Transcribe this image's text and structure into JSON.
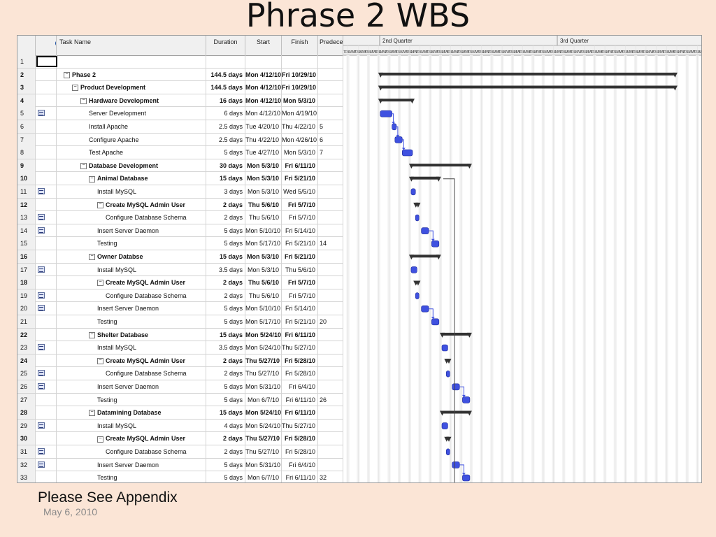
{
  "slide": {
    "title": "Phrase 2 WBS",
    "note": "Please See Appendix",
    "date": "May 6, 2010"
  },
  "columns": {
    "info_icon": "i",
    "task_name": "Task Name",
    "duration": "Duration",
    "start": "Start",
    "finish": "Finish",
    "predecessors": "Predeces"
  },
  "timescale": {
    "quarter1": "2nd Quarter",
    "quarter2": "3rd Quarter",
    "weekday_letters": "SMTWTFS"
  },
  "colors": {
    "task_bar": "#3f51e0",
    "summary_bar": "#333333",
    "slide_bg": "#fbe5d6"
  },
  "tasks": [
    {
      "id": "1",
      "name": "",
      "duration": "",
      "start": "",
      "finish": "",
      "pred": "",
      "level": 0,
      "summary": false,
      "note": false
    },
    {
      "id": "2",
      "name": "Phase 2",
      "duration": "144.5 days",
      "start": "Mon 4/12/10",
      "finish": "Fri 10/29/10",
      "pred": "",
      "level": 0,
      "summary": true,
      "note": false
    },
    {
      "id": "3",
      "name": "Product Development",
      "duration": "144.5 days",
      "start": "Mon 4/12/10",
      "finish": "Fri 10/29/10",
      "pred": "",
      "level": 1,
      "summary": true,
      "note": false
    },
    {
      "id": "4",
      "name": "Hardware Development",
      "duration": "16 days",
      "start": "Mon 4/12/10",
      "finish": "Mon 5/3/10",
      "pred": "",
      "level": 2,
      "summary": true,
      "note": false
    },
    {
      "id": "5",
      "name": "Server Development",
      "duration": "6 days",
      "start": "Mon 4/12/10",
      "finish": "Mon 4/19/10",
      "pred": "",
      "level": 3,
      "summary": false,
      "note": true
    },
    {
      "id": "6",
      "name": "Install Apache",
      "duration": "2.5 days",
      "start": "Tue 4/20/10",
      "finish": "Thu 4/22/10",
      "pred": "5",
      "level": 3,
      "summary": false,
      "note": false
    },
    {
      "id": "7",
      "name": "Configure Apache",
      "duration": "2.5 days",
      "start": "Thu 4/22/10",
      "finish": "Mon 4/26/10",
      "pred": "6",
      "level": 3,
      "summary": false,
      "note": false
    },
    {
      "id": "8",
      "name": "Test Apache",
      "duration": "5 days",
      "start": "Tue 4/27/10",
      "finish": "Mon 5/3/10",
      "pred": "7",
      "level": 3,
      "summary": false,
      "note": false
    },
    {
      "id": "9",
      "name": "Database Development",
      "duration": "30 days",
      "start": "Mon 5/3/10",
      "finish": "Fri 6/11/10",
      "pred": "",
      "level": 2,
      "summary": true,
      "note": false
    },
    {
      "id": "10",
      "name": "Animal Database",
      "duration": "15 days",
      "start": "Mon 5/3/10",
      "finish": "Fri 5/21/10",
      "pred": "",
      "level": 3,
      "summary": true,
      "note": false
    },
    {
      "id": "11",
      "name": "Install MySQL",
      "duration": "3 days",
      "start": "Mon 5/3/10",
      "finish": "Wed 5/5/10",
      "pred": "",
      "level": 4,
      "summary": false,
      "note": true
    },
    {
      "id": "12",
      "name": "Create MySQL Admin User",
      "duration": "2 days",
      "start": "Thu 5/6/10",
      "finish": "Fri 5/7/10",
      "pred": "",
      "level": 4,
      "summary": true,
      "note": false
    },
    {
      "id": "13",
      "name": "Configure Database Schema",
      "duration": "2 days",
      "start": "Thu 5/6/10",
      "finish": "Fri 5/7/10",
      "pred": "",
      "level": 5,
      "summary": false,
      "note": true
    },
    {
      "id": "14",
      "name": "Insert Server Daemon",
      "duration": "5 days",
      "start": "Mon 5/10/10",
      "finish": "Fri 5/14/10",
      "pred": "",
      "level": 4,
      "summary": false,
      "note": true
    },
    {
      "id": "15",
      "name": "Testing",
      "duration": "5 days",
      "start": "Mon 5/17/10",
      "finish": "Fri 5/21/10",
      "pred": "14",
      "level": 4,
      "summary": false,
      "note": false
    },
    {
      "id": "16",
      "name": "Owner Databse",
      "duration": "15 days",
      "start": "Mon 5/3/10",
      "finish": "Fri 5/21/10",
      "pred": "",
      "level": 3,
      "summary": true,
      "note": false
    },
    {
      "id": "17",
      "name": "Install MySQL",
      "duration": "3.5 days",
      "start": "Mon 5/3/10",
      "finish": "Thu 5/6/10",
      "pred": "",
      "level": 4,
      "summary": false,
      "note": true
    },
    {
      "id": "18",
      "name": "Create MySQL Admin User",
      "duration": "2 days",
      "start": "Thu 5/6/10",
      "finish": "Fri 5/7/10",
      "pred": "",
      "level": 4,
      "summary": true,
      "note": false
    },
    {
      "id": "19",
      "name": "Configure Database Schema",
      "duration": "2 days",
      "start": "Thu 5/6/10",
      "finish": "Fri 5/7/10",
      "pred": "",
      "level": 5,
      "summary": false,
      "note": true
    },
    {
      "id": "20",
      "name": "Insert Server Daemon",
      "duration": "5 days",
      "start": "Mon 5/10/10",
      "finish": "Fri 5/14/10",
      "pred": "",
      "level": 4,
      "summary": false,
      "note": true
    },
    {
      "id": "21",
      "name": "Testing",
      "duration": "5 days",
      "start": "Mon 5/17/10",
      "finish": "Fri 5/21/10",
      "pred": "20",
      "level": 4,
      "summary": false,
      "note": false
    },
    {
      "id": "22",
      "name": "Shelter Database",
      "duration": "15 days",
      "start": "Mon 5/24/10",
      "finish": "Fri 6/11/10",
      "pred": "",
      "level": 3,
      "summary": true,
      "note": false
    },
    {
      "id": "23",
      "name": "Install MySQL",
      "duration": "3.5 days",
      "start": "Mon 5/24/10",
      "finish": "Thu 5/27/10",
      "pred": "",
      "level": 4,
      "summary": false,
      "note": true
    },
    {
      "id": "24",
      "name": "Create MySQL Admin User",
      "duration": "2 days",
      "start": "Thu 5/27/10",
      "finish": "Fri 5/28/10",
      "pred": "",
      "level": 4,
      "summary": true,
      "note": false
    },
    {
      "id": "25",
      "name": "Configure Database Schema",
      "duration": "2 days",
      "start": "Thu 5/27/10",
      "finish": "Fri 5/28/10",
      "pred": "",
      "level": 5,
      "summary": false,
      "note": true
    },
    {
      "id": "26",
      "name": "Insert Server Daemon",
      "duration": "5 days",
      "start": "Mon 5/31/10",
      "finish": "Fri 6/4/10",
      "pred": "",
      "level": 4,
      "summary": false,
      "note": true
    },
    {
      "id": "27",
      "name": "Testing",
      "duration": "5 days",
      "start": "Mon 6/7/10",
      "finish": "Fri 6/11/10",
      "pred": "26",
      "level": 4,
      "summary": false,
      "note": false
    },
    {
      "id": "28",
      "name": "Datamining Database",
      "duration": "15 days",
      "start": "Mon 5/24/10",
      "finish": "Fri 6/11/10",
      "pred": "",
      "level": 3,
      "summary": true,
      "note": false
    },
    {
      "id": "29",
      "name": "Install MySQL",
      "duration": "4 days",
      "start": "Mon 5/24/10",
      "finish": "Thu 5/27/10",
      "pred": "",
      "level": 4,
      "summary": false,
      "note": true
    },
    {
      "id": "30",
      "name": "Create MySQL Admin User",
      "duration": "2 days",
      "start": "Thu 5/27/10",
      "finish": "Fri 5/28/10",
      "pred": "",
      "level": 4,
      "summary": true,
      "note": false
    },
    {
      "id": "31",
      "name": "Configure Database Schema",
      "duration": "2 days",
      "start": "Thu 5/27/10",
      "finish": "Fri 5/28/10",
      "pred": "",
      "level": 5,
      "summary": false,
      "note": true
    },
    {
      "id": "32",
      "name": "Insert Server Daemon",
      "duration": "5 days",
      "start": "Mon 5/31/10",
      "finish": "Fri 6/4/10",
      "pred": "",
      "level": 4,
      "summary": false,
      "note": true
    },
    {
      "id": "33",
      "name": "Testing",
      "duration": "5 days",
      "start": "Mon 6/7/10",
      "finish": "Fri 6/11/10",
      "pred": "32",
      "level": 4,
      "summary": false,
      "note": false
    }
  ]
}
